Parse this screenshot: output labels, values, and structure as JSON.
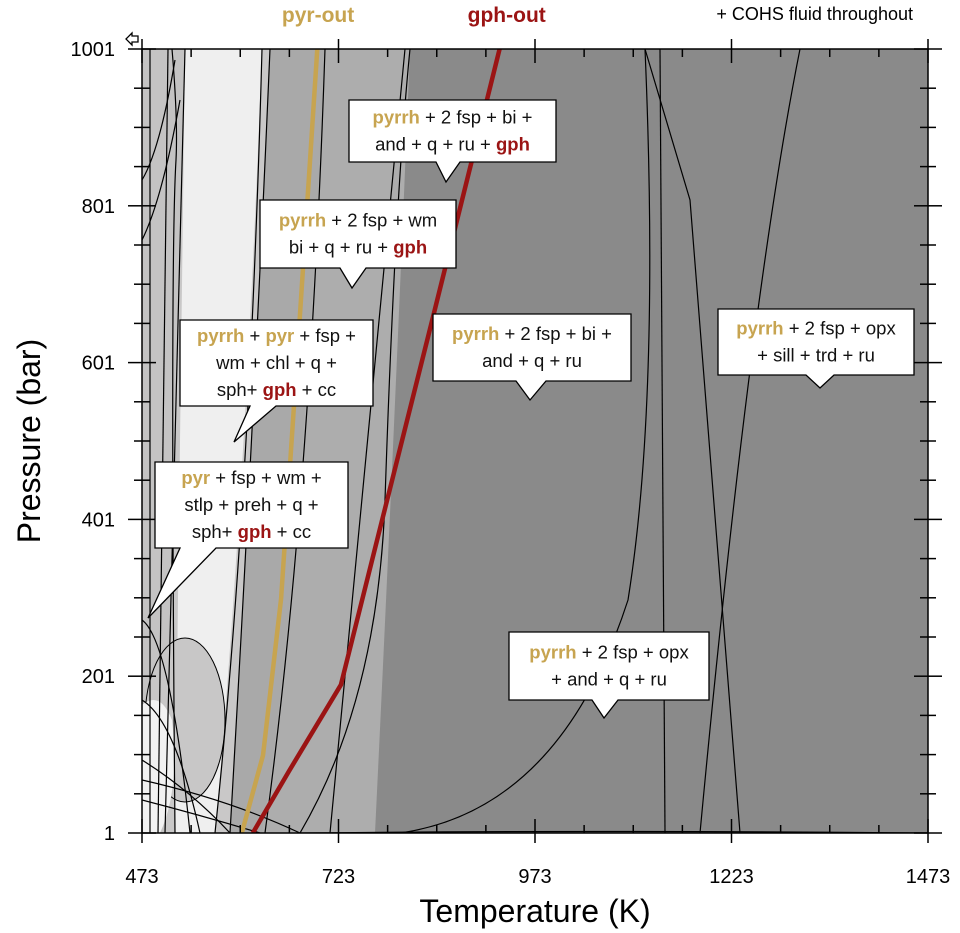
{
  "chart_data": {
    "type": "phase-diagram",
    "xlabel": "Temperature (K)",
    "ylabel": "Pressure (bar)",
    "xlim": [
      473,
      1473
    ],
    "ylim": [
      1,
      1001
    ],
    "xticks": [
      "473",
      "723",
      "973",
      "1223",
      "1473"
    ],
    "yticks": [
      "1",
      "201",
      "401",
      "601",
      "801",
      "1001"
    ],
    "note": "+ COHS fluid throughout",
    "colors": {
      "pyr": "#c7a450",
      "gph": "#9b1414"
    },
    "boundary_labels": [
      {
        "text": "pyr-out",
        "color": "#c7a450",
        "at_T": 697
      },
      {
        "text": "gph-out",
        "color": "#9b1414",
        "at_T": 937
      }
    ],
    "boundaries": {
      "pyr_out": [
        [
          600,
          1
        ],
        [
          627,
          100
        ],
        [
          650,
          300
        ],
        [
          670,
          600
        ],
        [
          696,
          1001
        ]
      ],
      "gph_out": [
        [
          614,
          1
        ],
        [
          660,
          80
        ],
        [
          726,
          190
        ],
        [
          771,
          370
        ],
        [
          841,
          650
        ],
        [
          928,
          1001
        ]
      ]
    },
    "fields": [
      {
        "name": "pyrrh + 2 fsp + bi + and + q + ru + gph",
        "lines": [
          [
            {
              "t": "pyrrh",
              "c": "pyr"
            },
            {
              "t": " + 2 fsp + bi +"
            }
          ],
          [
            {
              "t": "and + q + ru + "
            },
            {
              "t": "gph",
              "c": "gph"
            }
          ]
        ]
      },
      {
        "name": "pyrrh + 2 fsp + wm bi + q + ru + gph",
        "lines": [
          [
            {
              "t": "pyrrh",
              "c": "pyr"
            },
            {
              "t": " + 2 fsp + wm"
            }
          ],
          [
            {
              "t": "bi + q + ru + "
            },
            {
              "t": "gph",
              "c": "gph"
            }
          ]
        ]
      },
      {
        "name": "pyrrh + pyr + fsp + wm + chl + q + sph + gph + cc",
        "lines": [
          [
            {
              "t": "pyrrh",
              "c": "pyr"
            },
            {
              "t": " + "
            },
            {
              "t": "pyr",
              "c": "pyr"
            },
            {
              "t": " + fsp +"
            }
          ],
          [
            {
              "t": "wm + chl + q +"
            }
          ],
          [
            {
              "t": "sph+ "
            },
            {
              "t": "gph",
              "c": "gph"
            },
            {
              "t": " + cc"
            }
          ]
        ]
      },
      {
        "name": "pyrrh + 2 fsp + bi + and + q + ru",
        "lines": [
          [
            {
              "t": "pyrrh",
              "c": "pyr"
            },
            {
              "t": " + 2 fsp + bi +"
            }
          ],
          [
            {
              "t": "and + q + ru"
            }
          ]
        ]
      },
      {
        "name": "pyrrh + 2 fsp + opx + sill + trd + ru",
        "lines": [
          [
            {
              "t": "pyrrh",
              "c": "pyr"
            },
            {
              "t": " + 2 fsp + opx"
            }
          ],
          [
            {
              "t": "+ sill + trd + ru"
            }
          ]
        ]
      },
      {
        "name": "pyr + fsp + wm + stlp + preh + q + sph + gph + cc",
        "lines": [
          [
            {
              "t": "pyr",
              "c": "pyr"
            },
            {
              "t": " + fsp + wm +"
            }
          ],
          [
            {
              "t": "stlp + preh + q +"
            }
          ],
          [
            {
              "t": "sph+ "
            },
            {
              "t": "gph",
              "c": "gph"
            },
            {
              "t": " + cc"
            }
          ]
        ]
      },
      {
        "name": "pyrrh + 2 fsp + opx + and + q + ru",
        "lines": [
          [
            {
              "t": "pyrrh",
              "c": "pyr"
            },
            {
              "t": " + 2 fsp + opx"
            }
          ],
          [
            {
              "t": "+ and + q + ru"
            }
          ]
        ]
      }
    ]
  }
}
